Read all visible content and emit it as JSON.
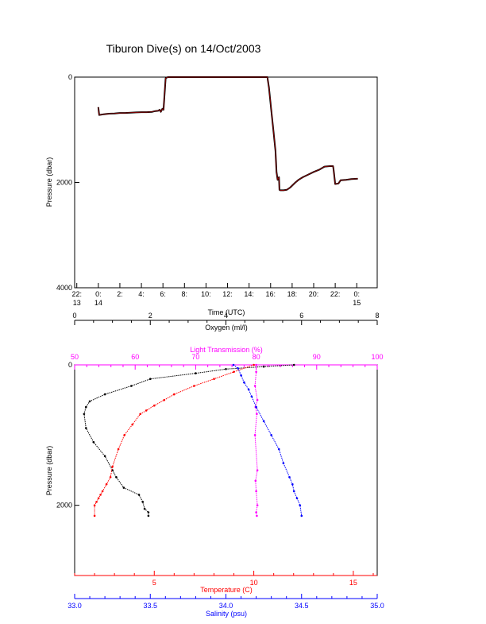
{
  "figure": {
    "title": "Tiburon Dive(s) on 14/Oct/2003"
  },
  "colors": {
    "axis": "#000000",
    "temperature": "#ff0000",
    "light_transmission": "#ff00ff",
    "salinity": "#0000ff",
    "oxygen": "#000000",
    "time_trace_inner": "#aa0000"
  },
  "chart_data": [
    {
      "type": "line",
      "title": "Tiburon Dive(s) on 14/Oct/2003",
      "xlabel": "Time (UTC)",
      "ylabel": "Pressure (dbar)",
      "ylim": [
        4000,
        0
      ],
      "y_ticks": [
        "0",
        "2000",
        "4000"
      ],
      "x_ticks": [
        {
          "hour": -2,
          "top": "22:",
          "bottom": "13"
        },
        {
          "hour": 0,
          "top": "0:",
          "bottom": "14"
        },
        {
          "hour": 2,
          "top": "2:",
          "bottom": ""
        },
        {
          "hour": 4,
          "top": "4:",
          "bottom": ""
        },
        {
          "hour": 6,
          "top": "6:",
          "bottom": ""
        },
        {
          "hour": 8,
          "top": "8:",
          "bottom": ""
        },
        {
          "hour": 10,
          "top": "10:",
          "bottom": ""
        },
        {
          "hour": 12,
          "top": "12:",
          "bottom": ""
        },
        {
          "hour": 14,
          "top": "14:",
          "bottom": ""
        },
        {
          "hour": 16,
          "top": "16:",
          "bottom": ""
        },
        {
          "hour": 18,
          "top": "18:",
          "bottom": ""
        },
        {
          "hour": 20,
          "top": "20:",
          "bottom": ""
        },
        {
          "hour": 22,
          "top": "22:",
          "bottom": ""
        },
        {
          "hour": 24,
          "top": "0:",
          "bottom": "15"
        }
      ],
      "xlim": [
        -2.2,
        25.9
      ],
      "series": [
        {
          "x": [
            0.0,
            0.08,
            0.5,
            1.0,
            1.5,
            2.0,
            2.5,
            3.0,
            3.5,
            4.0,
            4.5,
            5.0,
            5.3,
            5.55,
            5.7,
            5.8,
            5.95,
            6.05,
            6.25,
            6.45,
            8.0,
            10.0,
            12.0,
            14.0,
            15.7,
            15.85,
            16.05,
            16.25,
            16.45,
            16.55,
            16.65,
            16.78,
            16.82,
            16.9,
            17.2,
            17.5,
            17.8,
            18.0,
            18.3,
            18.6,
            19.0,
            19.5,
            20.0,
            20.5,
            21.0,
            21.5,
            21.8,
            21.85,
            22.0,
            22.3,
            22.5,
            23.0,
            23.5,
            24.0,
            24.1
          ],
          "y": [
            570,
            720,
            705,
            695,
            690,
            680,
            680,
            675,
            670,
            665,
            665,
            660,
            645,
            640,
            620,
            660,
            600,
            620,
            20,
            0,
            0,
            0,
            0,
            0,
            0,
            200,
            600,
            1000,
            1400,
            1800,
            1950,
            1900,
            2140,
            2150,
            2150,
            2140,
            2100,
            2060,
            2000,
            1950,
            1900,
            1850,
            1800,
            1760,
            1700,
            1690,
            1690,
            1760,
            2030,
            2020,
            1960,
            1950,
            1935,
            1930,
            1930
          ]
        }
      ]
    },
    {
      "type": "line",
      "ylabel": "Pressure (dbar)",
      "ylim": [
        3000,
        0
      ],
      "y_ticks": [
        "0",
        "2000"
      ],
      "axes": {
        "oxygen": {
          "label": "Oxygen (ml/l)",
          "range": [
            0,
            8
          ],
          "ticks": [
            "0",
            "2",
            "4",
            "6",
            "8"
          ]
        },
        "light_transmission": {
          "label": "Light Transmission (%)",
          "range": [
            50,
            100
          ],
          "ticks": [
            "50",
            "60",
            "70",
            "80",
            "90",
            "100"
          ]
        },
        "temperature": {
          "label": "Temperature (C)",
          "range": [
            1.0,
            16.2
          ],
          "ticks": [
            "5",
            "10",
            "15"
          ]
        },
        "salinity": {
          "label": "Salinity (psu)",
          "range": [
            33.0,
            35.0
          ],
          "ticks": [
            "33.0",
            "33.5",
            "34.0",
            "34.5",
            "35.0"
          ]
        }
      },
      "series": [
        {
          "name": "Oxygen (ml/l)",
          "x": [
            5.8,
            5.0,
            4.0,
            3.2,
            2.0,
            1.5,
            0.8,
            0.4,
            0.3,
            0.25,
            0.3,
            0.5,
            0.8,
            1.0,
            1.1,
            1.3,
            1.7,
            1.8,
            1.85,
            1.95,
            1.95
          ],
          "y": [
            0,
            25,
            60,
            120,
            200,
            300,
            420,
            520,
            600,
            700,
            900,
            1100,
            1300,
            1500,
            1600,
            1750,
            1850,
            1950,
            2050,
            2100,
            2150
          ]
        },
        {
          "name": "Light Transmission (%)",
          "x": [
            80.0,
            80.0,
            79.8,
            80.2,
            79.9,
            80.1,
            79.8,
            80.2,
            79.9,
            80.0,
            80.2,
            80.0,
            80.1
          ],
          "y": [
            0,
            100,
            300,
            500,
            600,
            700,
            1000,
            1500,
            1650,
            1800,
            2000,
            2100,
            2150
          ]
        },
        {
          "name": "Temperature (C)",
          "x": [
            10.0,
            9.0,
            8.0,
            7.0,
            6.0,
            5.5,
            5.0,
            4.6,
            4.3,
            3.9,
            3.5,
            3.2,
            2.9,
            2.8,
            2.6,
            2.4,
            2.3,
            2.2,
            2.1,
            2.0,
            2.0
          ],
          "y": [
            0,
            100,
            200,
            300,
            420,
            500,
            580,
            650,
            700,
            850,
            1000,
            1200,
            1450,
            1600,
            1700,
            1800,
            1850,
            1900,
            1950,
            2000,
            2150
          ]
        },
        {
          "name": "Salinity (psu)",
          "x": [
            34.05,
            34.08,
            34.1,
            34.12,
            34.15,
            34.17,
            34.2,
            34.25,
            34.3,
            34.35,
            34.38,
            34.42,
            34.44,
            34.45,
            34.47,
            34.49,
            34.5
          ],
          "y": [
            0,
            50,
            150,
            250,
            350,
            450,
            600,
            800,
            1000,
            1200,
            1400,
            1600,
            1700,
            1800,
            1900,
            2000,
            2150
          ]
        }
      ]
    }
  ]
}
